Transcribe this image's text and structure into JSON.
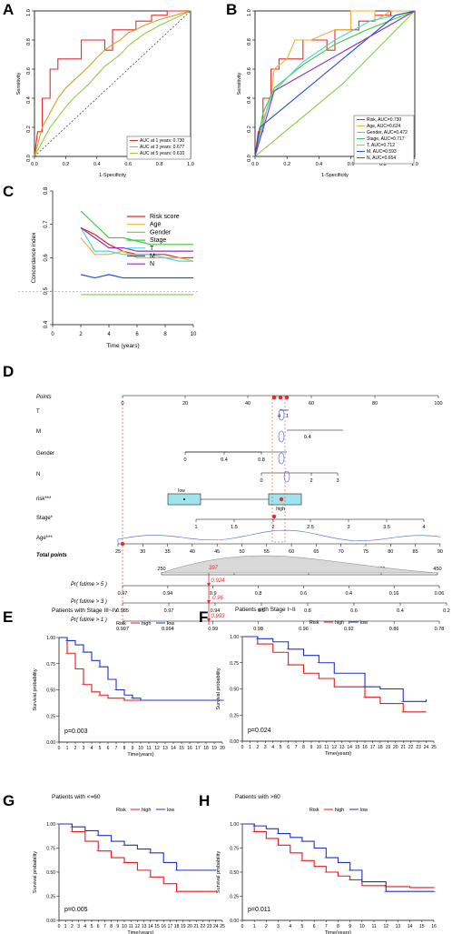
{
  "panels": {
    "A": {
      "letter": "A",
      "xlabel": "1-Specificity",
      "ylabel": "Sensitivity",
      "xticks": [
        "0.0",
        "0.2",
        "0.4",
        "0.6",
        "0.8",
        "1.0"
      ],
      "yticks": [
        "0.0",
        "0.2",
        "0.4",
        "0.6",
        "0.8",
        "1.0"
      ],
      "legend": [
        "AUC at 1 years: 0.730",
        "AUC at 3 years: 0.677",
        "AUC at 5 years: 0.610"
      ]
    },
    "B": {
      "letter": "B",
      "xlabel": "1-Specificity",
      "ylabel": "Sensitivity",
      "xticks": [
        "0.0",
        "0.2",
        "0.4",
        "0.6",
        "0.8",
        "1.0"
      ],
      "yticks": [
        "0.0",
        "0.2",
        "0.4",
        "0.6",
        "0.8",
        "1.0"
      ],
      "legend": [
        "Risk, AUC=0.730",
        "Age, AUC=0.624",
        "Gender, AUC=0.472",
        "Stage, AUC=0.717",
        "T, AUC=0.712",
        "M, AUC=0.593",
        "N, AUC=0.654"
      ]
    },
    "C": {
      "letter": "C",
      "xlabel": "Time (years)",
      "ylabel": "Concordance index",
      "xticks": [
        "0",
        "2",
        "4",
        "6",
        "8",
        "10"
      ],
      "yticks": [
        "0.4",
        "0.5",
        "0.6",
        "0.7",
        "0.8"
      ],
      "legend": [
        "Risk score",
        "Age",
        "Gender",
        "Stage",
        "T",
        "M",
        "N"
      ]
    },
    "D": {
      "letter": "D",
      "rows": [
        "Points",
        "T",
        "M",
        "Gender",
        "N",
        "risk***",
        "Stage*",
        "Age***",
        "Total points",
        "Pr( futime > 5 )",
        "Pr( futime > 3 )",
        "Pr( futime > 1 )"
      ],
      "points_ticks": [
        "0",
        "20",
        "40",
        "60",
        "80",
        "100"
      ],
      "t_ticks": [
        "4",
        "1"
      ],
      "m_ticks": [
        "0.4"
      ],
      "gender_ticks": [
        "0",
        "0.4",
        "0.8"
      ],
      "n_ticks": [
        "0",
        "2",
        "3"
      ],
      "risk_labels": [
        "low",
        "high"
      ],
      "stage_ticks": [
        "1",
        "1.5",
        "2",
        "2.5",
        "3",
        "3.5",
        "4"
      ],
      "age_ticks": [
        "25",
        "30",
        "35",
        "40",
        "45",
        "50",
        "55",
        "60",
        "65",
        "70",
        "75",
        "80",
        "85",
        "90"
      ],
      "total_ticks": [
        "250",
        "300",
        "350",
        "400",
        "450"
      ],
      "total_value": "397",
      "pr5_ticks": [
        "0.97",
        "0.94",
        "0.9",
        "0.8",
        "0.6",
        "0.4",
        "0.16",
        "0.06"
      ],
      "pr5_value": "0.924",
      "pr3_ticks": [
        "0.985",
        "0.97",
        "0.94",
        "0.9",
        "0.8",
        "0.6",
        "0.4",
        "0.2"
      ],
      "pr3_value": "0.96",
      "pr1_ticks": [
        "0.997",
        "0.994",
        "0.99",
        "0.98",
        "0.96",
        "0.92",
        "0.86",
        "0.78"
      ],
      "pr1_value": "0.993"
    },
    "E": {
      "letter": "E",
      "title": "Patients with Stage III~IV",
      "pvalue": "p=0.003",
      "xticks": [
        "0",
        "1",
        "2",
        "3",
        "4",
        "5",
        "6",
        "7",
        "8",
        "9",
        "10",
        "11",
        "12",
        "13",
        "14",
        "15",
        "16",
        "17",
        "18",
        "19",
        "20"
      ]
    },
    "F": {
      "letter": "F",
      "title": "Patients with Stage I~II",
      "pvalue": "p=0.024",
      "xticks": [
        "0",
        "1",
        "2",
        "3",
        "4",
        "5",
        "6",
        "7",
        "8",
        "9",
        "10",
        "11",
        "12",
        "13",
        "14",
        "15",
        "16",
        "17",
        "18",
        "19",
        "20",
        "21",
        "22",
        "23",
        "24",
        "25"
      ]
    },
    "G": {
      "letter": "G",
      "title": "Patients with <=60",
      "pvalue": "p=0.005",
      "xticks": [
        "0",
        "1",
        "2",
        "3",
        "4",
        "5",
        "6",
        "7",
        "8",
        "9",
        "10",
        "11",
        "12",
        "13",
        "14",
        "15",
        "16",
        "17",
        "18",
        "19",
        "20",
        "21",
        "22",
        "23",
        "24",
        "25"
      ]
    },
    "H": {
      "letter": "H",
      "title": "Patients with >60",
      "pvalue": "p=0.011",
      "xticks": [
        "0",
        "1",
        "2",
        "3",
        "4",
        "5",
        "6",
        "7",
        "8",
        "9",
        "10",
        "11",
        "12",
        "13",
        "14",
        "15",
        "16"
      ]
    }
  },
  "km_common": {
    "ylabel": "Survival probability",
    "xlabel": "Time(years)",
    "yticks": [
      "0.00",
      "0.25",
      "0.50",
      "0.75",
      "1.00"
    ],
    "legend_title": "Risk",
    "legend_high": "high",
    "legend_low": "low"
  },
  "colors": {
    "high": "#e41a1c",
    "low": "#1f30c8",
    "roc1": "#e8282c",
    "roc3": "#d8a018",
    "roc5": "#8cd048",
    "risk": "#e8282c",
    "age": "#f0b030",
    "gender": "#80d040",
    "stage": "#40c840",
    "t": "#40d8e0",
    "m": "#2050c8",
    "n": "#9030c0"
  },
  "chart_data": [
    {
      "type": "line",
      "panel": "A",
      "xlabel": "1-Specificity",
      "ylabel": "Sensitivity",
      "xlim": [
        0,
        1
      ],
      "ylim": [
        0,
        1
      ],
      "series": [
        {
          "name": "AUC at 1 years: 0.730",
          "x": [
            0,
            0.02,
            0.05,
            0.05,
            0.1,
            0.1,
            0.15,
            0.15,
            0.3,
            0.3,
            0.45,
            0.45,
            0.5,
            0.5,
            0.65,
            0.65,
            0.75,
            0.75,
            0.85,
            0.85,
            1
          ],
          "y": [
            0,
            0.17,
            0.17,
            0.4,
            0.4,
            0.6,
            0.6,
            0.67,
            0.67,
            0.8,
            0.8,
            0.73,
            0.73,
            0.87,
            0.87,
            0.93,
            0.93,
            0.97,
            0.97,
            1,
            1
          ]
        },
        {
          "name": "AUC at 3 years: 0.677",
          "x": [
            0,
            0.05,
            0.1,
            0.15,
            0.2,
            0.25,
            0.3,
            0.35,
            0.4,
            0.45,
            0.5,
            0.55,
            0.6,
            0.65,
            0.7,
            0.8,
            0.9,
            1
          ],
          "y": [
            0,
            0.2,
            0.3,
            0.4,
            0.47,
            0.52,
            0.57,
            0.62,
            0.68,
            0.73,
            0.77,
            0.8,
            0.85,
            0.87,
            0.9,
            0.94,
            0.97,
            1
          ]
        },
        {
          "name": "AUC at 5 years: 0.610",
          "x": [
            0,
            0.05,
            0.1,
            0.15,
            0.2,
            0.25,
            0.3,
            0.35,
            0.4,
            0.45,
            0.5,
            0.55,
            0.6,
            0.65,
            0.7,
            0.8,
            0.9,
            1
          ],
          "y": [
            0,
            0.1,
            0.2,
            0.27,
            0.34,
            0.4,
            0.45,
            0.5,
            0.56,
            0.62,
            0.66,
            0.7,
            0.76,
            0.8,
            0.84,
            0.9,
            0.95,
            1
          ]
        },
        {
          "name": "",
          "x": [
            0,
            1
          ],
          "y": [
            0,
            1
          ]
        }
      ]
    },
    {
      "type": "line",
      "panel": "B",
      "xlabel": "1-Specificity",
      "ylabel": "Sensitivity",
      "xlim": [
        0,
        1
      ],
      "ylim": [
        0,
        1
      ],
      "series": [
        {
          "name": "Risk, AUC=0.730",
          "x": [
            0,
            0.02,
            0.05,
            0.05,
            0.1,
            0.1,
            0.15,
            0.15,
            0.3,
            0.3,
            0.45,
            0.45,
            0.5,
            0.5,
            0.65,
            0.65,
            0.75,
            0.75,
            0.85,
            0.85,
            1
          ],
          "y": [
            0,
            0.17,
            0.17,
            0.4,
            0.4,
            0.6,
            0.6,
            0.67,
            0.67,
            0.8,
            0.8,
            0.73,
            0.73,
            0.87,
            0.87,
            0.93,
            0.93,
            0.97,
            0.97,
            1,
            1
          ]
        },
        {
          "name": "Age, AUC=0.624",
          "x": [
            0,
            0.05,
            0.1,
            0.12,
            0.2,
            0.25,
            0.35,
            0.5,
            0.6,
            0.6,
            0.75,
            0.75,
            0.85,
            1
          ],
          "y": [
            0,
            0.25,
            0.4,
            0.6,
            0.67,
            0.8,
            0.8,
            0.87,
            0.87,
            1,
            1,
            0.93,
            1,
            1
          ]
        },
        {
          "name": "Gender, AUC=0.472",
          "x": [
            0,
            0.55,
            1
          ],
          "y": [
            0,
            0.5,
            1
          ]
        },
        {
          "name": "Stage, AUC=0.717",
          "x": [
            0,
            0.05,
            0.12,
            0.3,
            0.5,
            0.7,
            1
          ],
          "y": [
            0,
            0.3,
            0.47,
            0.63,
            0.77,
            0.87,
            1
          ]
        },
        {
          "name": "T, AUC=0.712",
          "x": [
            0,
            0.08,
            0.12,
            0.3,
            0.5,
            0.72,
            1
          ],
          "y": [
            0,
            0.35,
            0.45,
            0.65,
            0.8,
            0.93,
            1
          ]
        },
        {
          "name": "M, AUC=0.593",
          "x": [
            0,
            0.03,
            0.88,
            1
          ],
          "y": [
            0,
            0.2,
            0.97,
            1
          ]
        },
        {
          "name": "N, AUC=0.654",
          "x": [
            0,
            0.12,
            1
          ],
          "y": [
            0,
            0.45,
            1
          ]
        }
      ]
    },
    {
      "type": "line",
      "panel": "C",
      "xlabel": "Time (years)",
      "ylabel": "Concordance index",
      "xlim": [
        0,
        10
      ],
      "ylim": [
        0.4,
        0.8
      ],
      "series": [
        {
          "name": "Risk score",
          "x": [
            2,
            3,
            4,
            5,
            6,
            7,
            8,
            9,
            10
          ],
          "y": [
            0.69,
            0.67,
            0.64,
            0.62,
            0.61,
            0.61,
            0.61,
            0.6,
            0.6
          ]
        },
        {
          "name": "Age",
          "x": [
            2,
            3,
            4,
            5,
            6,
            7,
            8,
            9,
            10
          ],
          "y": [
            0.66,
            0.61,
            0.61,
            0.62,
            0.6,
            0.6,
            0.6,
            0.6,
            0.59
          ]
        },
        {
          "name": "Gender",
          "x": [
            2,
            3,
            4,
            5,
            6,
            7,
            8,
            9,
            10
          ],
          "y": [
            0.49,
            0.49,
            0.49,
            0.49,
            0.49,
            0.49,
            0.49,
            0.49,
            0.49
          ]
        },
        {
          "name": "Stage",
          "x": [
            2,
            3,
            4,
            5,
            6,
            7,
            8,
            9,
            10
          ],
          "y": [
            0.74,
            0.7,
            0.66,
            0.66,
            0.65,
            0.64,
            0.64,
            0.64,
            0.64
          ]
        },
        {
          "name": "T",
          "x": [
            2,
            3,
            4,
            5,
            6,
            7,
            8,
            9,
            10
          ],
          "y": [
            0.69,
            0.62,
            0.62,
            0.61,
            0.61,
            0.61,
            0.6,
            0.59,
            0.59
          ]
        },
        {
          "name": "M",
          "x": [
            2,
            3,
            4,
            5,
            6,
            7,
            8,
            9,
            10
          ],
          "y": [
            0.55,
            0.54,
            0.55,
            0.54,
            0.54,
            0.54,
            0.54,
            0.54,
            0.54
          ]
        },
        {
          "name": "N",
          "x": [
            2,
            3,
            4,
            5,
            6,
            7,
            8,
            9,
            10
          ],
          "y": [
            0.69,
            0.66,
            0.63,
            0.63,
            0.62,
            0.62,
            0.62,
            0.62,
            0.62
          ]
        }
      ]
    },
    {
      "type": "line",
      "panel": "E",
      "title": "Patients with Stage III~IV",
      "xlabel": "Time(years)",
      "ylabel": "Survival probability",
      "xlim": [
        0,
        20
      ],
      "ylim": [
        0,
        1
      ],
      "series": [
        {
          "name": "high",
          "x": [
            0,
            1,
            2,
            3,
            4,
            5,
            6,
            8,
            10,
            20
          ],
          "y": [
            1,
            0.85,
            0.7,
            0.55,
            0.48,
            0.45,
            0.42,
            0.4,
            0.4,
            0.4
          ]
        },
        {
          "name": "low",
          "x": [
            0,
            1,
            2,
            3,
            4,
            5,
            6,
            7,
            8,
            9,
            10,
            20
          ],
          "y": [
            1,
            0.97,
            0.93,
            0.86,
            0.78,
            0.72,
            0.6,
            0.5,
            0.45,
            0.42,
            0.4,
            0.4
          ]
        }
      ]
    },
    {
      "type": "line",
      "panel": "F",
      "title": "Patients with Stage I~II",
      "xlabel": "Time(years)",
      "ylabel": "Survival probability",
      "xlim": [
        0,
        25
      ],
      "ylim": [
        0,
        1
      ],
      "series": [
        {
          "name": "high",
          "x": [
            0,
            2,
            4,
            6,
            8,
            10,
            12,
            16,
            18,
            21,
            24
          ],
          "y": [
            1,
            0.93,
            0.85,
            0.73,
            0.65,
            0.6,
            0.52,
            0.42,
            0.36,
            0.28,
            0.28
          ]
        },
        {
          "name": "low",
          "x": [
            0,
            2,
            4,
            6,
            8,
            10,
            12,
            16,
            18,
            21,
            24
          ],
          "y": [
            1,
            0.98,
            0.95,
            0.88,
            0.82,
            0.75,
            0.65,
            0.52,
            0.5,
            0.38,
            0.4
          ]
        }
      ]
    },
    {
      "type": "line",
      "panel": "G",
      "title": "Patients with <=60",
      "xlabel": "Time(years)",
      "ylabel": "Survival probability",
      "xlim": [
        0,
        25
      ],
      "ylim": [
        0,
        1
      ],
      "series": [
        {
          "name": "high",
          "x": [
            0,
            2,
            4,
            6,
            8,
            10,
            12,
            14,
            16,
            18,
            20,
            24
          ],
          "y": [
            1,
            0.92,
            0.82,
            0.72,
            0.65,
            0.6,
            0.52,
            0.45,
            0.38,
            0.3,
            0.3,
            0.3
          ]
        },
        {
          "name": "low",
          "x": [
            0,
            2,
            4,
            6,
            8,
            10,
            12,
            14,
            16,
            18,
            20,
            24
          ],
          "y": [
            1,
            0.97,
            0.93,
            0.88,
            0.82,
            0.78,
            0.74,
            0.7,
            0.6,
            0.52,
            0.52,
            0.52
          ]
        }
      ]
    },
    {
      "type": "line",
      "panel": "H",
      "title": "Patients with >60",
      "xlabel": "Time(years)",
      "ylabel": "Survival probability",
      "xlim": [
        0,
        16
      ],
      "ylim": [
        0,
        1
      ],
      "series": [
        {
          "name": "high",
          "x": [
            0,
            1,
            2,
            3,
            4,
            5,
            6,
            7,
            8,
            9,
            10,
            12,
            14,
            16
          ],
          "y": [
            1,
            0.92,
            0.85,
            0.78,
            0.7,
            0.62,
            0.56,
            0.5,
            0.46,
            0.42,
            0.36,
            0.35,
            0.34,
            0.34
          ]
        },
        {
          "name": "low",
          "x": [
            0,
            1,
            2,
            3,
            4,
            5,
            6,
            7,
            8,
            9,
            10,
            12,
            14,
            16
          ],
          "y": [
            1,
            0.98,
            0.95,
            0.9,
            0.86,
            0.82,
            0.75,
            0.65,
            0.6,
            0.52,
            0.4,
            0.3,
            0.3,
            0.3
          ]
        }
      ]
    }
  ]
}
